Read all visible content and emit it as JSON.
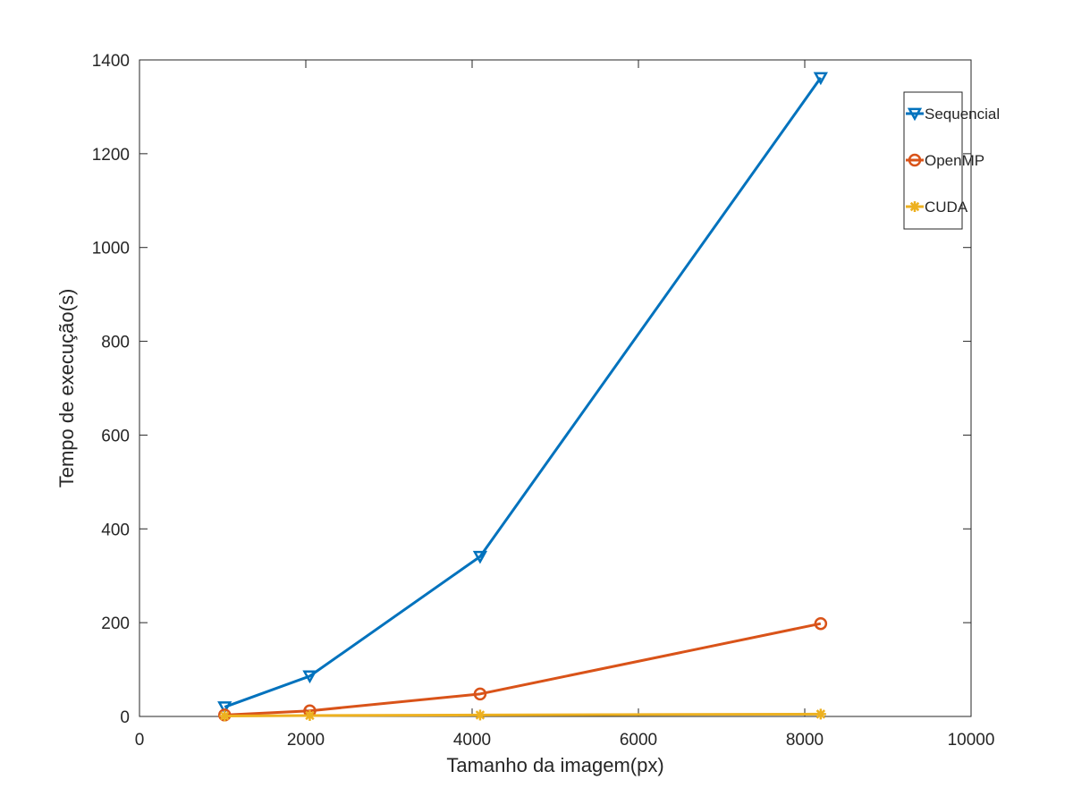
{
  "chart_data": {
    "type": "line",
    "title": "",
    "xlabel": "Tamanho da imagem(px)",
    "ylabel": "Tempo de execução(s)",
    "xlim": [
      0,
      10000
    ],
    "ylim": [
      0,
      1400
    ],
    "xticks": [
      0,
      2000,
      4000,
      6000,
      8000,
      10000
    ],
    "yticks": [
      0,
      200,
      400,
      600,
      800,
      1000,
      1200,
      1400
    ],
    "x": [
      1024,
      2048,
      4096,
      8192
    ],
    "grid": false,
    "legend_position": "top-right",
    "series": [
      {
        "name": "Sequencial",
        "values": [
          20,
          86,
          341,
          1362
        ],
        "color": "#0072BD",
        "marker": "triangle-down"
      },
      {
        "name": "OpenMP",
        "values": [
          3,
          12,
          48,
          198
        ],
        "color": "#D95319",
        "marker": "circle"
      },
      {
        "name": "CUDA",
        "values": [
          1,
          2,
          3,
          5
        ],
        "color": "#EDB120",
        "marker": "asterisk"
      }
    ]
  }
}
